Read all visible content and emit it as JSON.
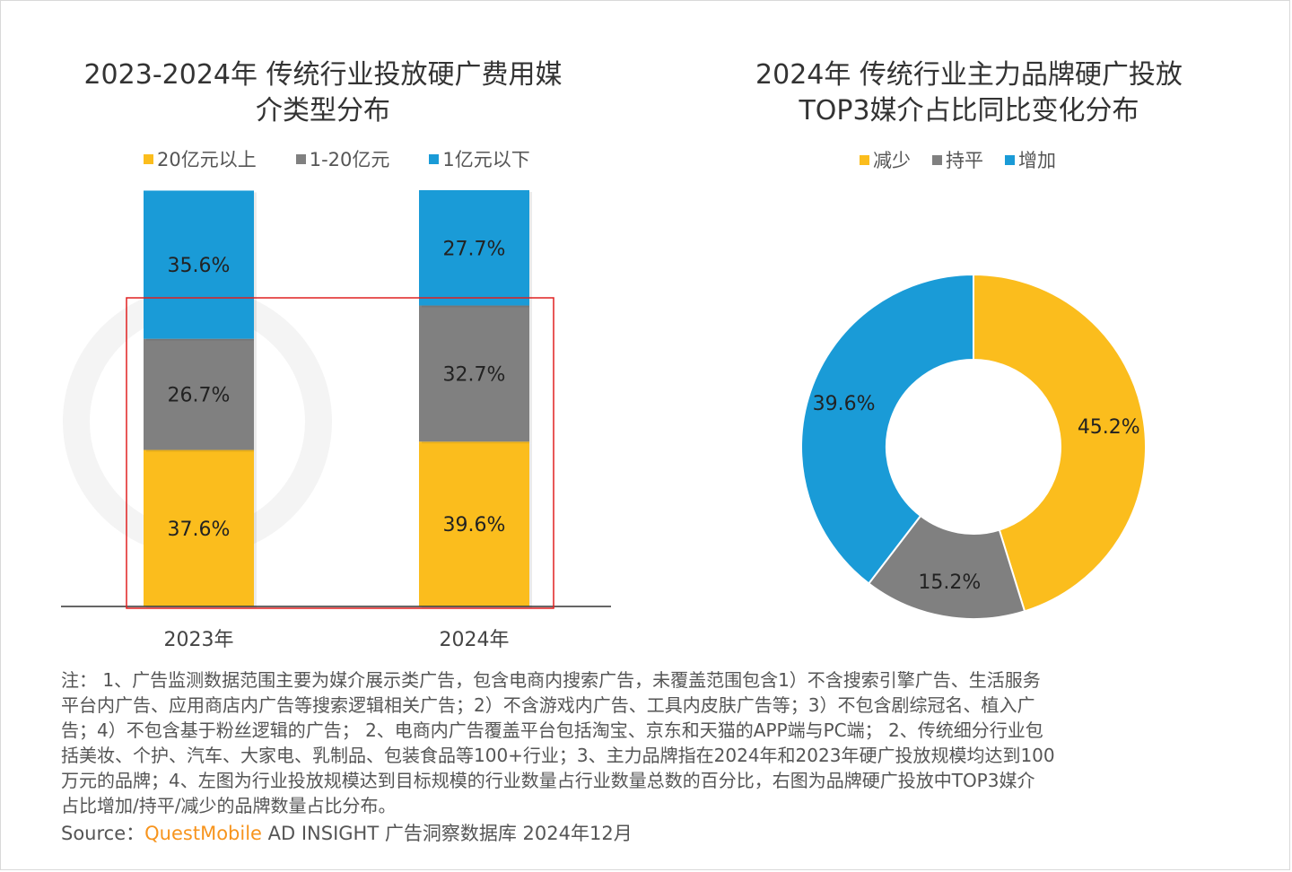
{
  "left_title": [
    "2023-2024年 传统行业投放硬广费用媒",
    "介类型分布"
  ],
  "right_title": [
    "2024年 传统行业主力品牌硬广投放",
    "TOP3媒介占比同比变化分布"
  ],
  "colors": {
    "yellow": "#fbbd1d",
    "gray": "#808080",
    "blue": "#1a9bd7",
    "highlight": "#e02020"
  },
  "chart_data": [
    {
      "type": "bar",
      "stacked": true,
      "title": "2023-2024年 传统行业投放硬广费用媒介类型分布",
      "categories": [
        "2023年",
        "2024年"
      ],
      "series": [
        {
          "name": "20亿元以上",
          "color": "#fbbd1d",
          "values": [
            37.6,
            39.6
          ],
          "labels": [
            "37.6%",
            "39.6%"
          ]
        },
        {
          "name": "1-20亿元",
          "color": "#808080",
          "values": [
            26.7,
            32.7
          ],
          "labels": [
            "26.7%",
            "32.7%"
          ]
        },
        {
          "name": "1亿元以下",
          "color": "#1a9bd7",
          "values": [
            35.6,
            27.7
          ],
          "labels": [
            "35.6%",
            "27.7%"
          ]
        }
      ],
      "ylim": [
        0,
        100
      ],
      "legend": "top"
    },
    {
      "type": "pie",
      "donut": true,
      "title": "2024年 传统行业主力品牌硬广投放TOP3媒介占比同比变化分布",
      "slices": [
        {
          "name": "减少",
          "value": 45.2,
          "label": "45.2%",
          "color": "#fbbd1d"
        },
        {
          "name": "持平",
          "value": 15.2,
          "label": "15.2%",
          "color": "#808080"
        },
        {
          "name": "增加",
          "value": 39.6,
          "label": "39.6%",
          "color": "#1a9bd7"
        }
      ],
      "legend": "top"
    }
  ],
  "notes": [
    "注： 1、广告监测数据范围主要为媒介展示类广告，包含电商内搜索广告，未覆盖范围包含1）不含搜索引擎广告、生活服务",
    "平台内广告、应用商店内广告等搜索逻辑相关广告；2）不含游戏内广告、工具内皮肤广告等；3）不包含剧综冠名、植入广",
    "告；4）不包含基于粉丝逻辑的广告； 2、电商内广告覆盖平台包括淘宝、京东和天猫的APP端与PC端； 2、传统细分行业包",
    "括美妆、个护、汽车、大家电、乳制品、包装食品等100+行业；3、主力品牌指在2024年和2023年硬广投放规模均达到100",
    "万元的品牌；4、左图为行业投放规模达到目标规模的行业数量占行业数量总数的百分比，右图为品牌硬广投放中TOP3媒介",
    "占比增加/持平/减少的品牌数量占比分布。"
  ],
  "source": {
    "label": "Source：",
    "brand": "QuestMobile",
    "rest": " AD INSIGHT 广告洞察数据库 2024年12月"
  },
  "watermark": "QUESTMOBILE"
}
